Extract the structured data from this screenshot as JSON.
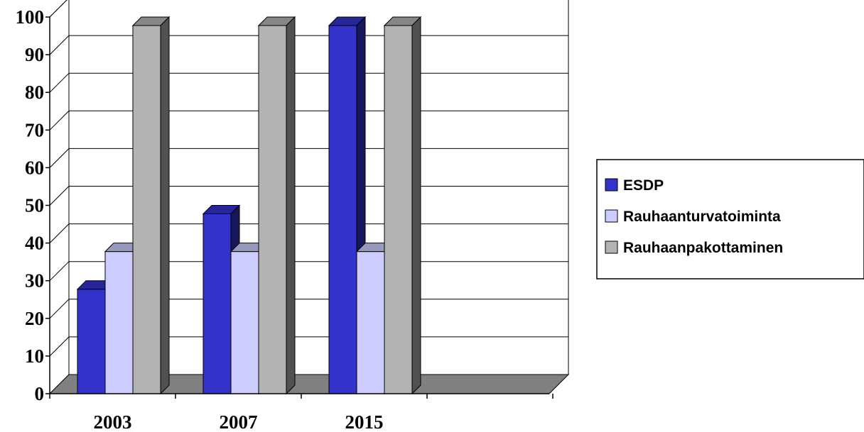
{
  "chart_data": {
    "type": "bar",
    "title": "",
    "xlabel": "",
    "ylabel": "",
    "categories": [
      "2003",
      "2007",
      "2015"
    ],
    "series": [
      {
        "name": "ESDP",
        "values": [
          30,
          50,
          100
        ],
        "color": "#3333cc"
      },
      {
        "name": "Rauhaanturvatoiminta",
        "values": [
          40,
          40,
          40
        ],
        "color": "#ccccff"
      },
      {
        "name": "Rauhaanpakottaminen",
        "values": [
          100,
          100,
          100
        ],
        "color": "#b3b3b3"
      }
    ],
    "ylim": [
      0,
      100
    ],
    "yticks": [
      "0",
      "10",
      "20",
      "30",
      "40",
      "50",
      "60",
      "70",
      "80",
      "90",
      "100"
    ],
    "grid": true,
    "three_d": true,
    "legend_position": "right"
  }
}
